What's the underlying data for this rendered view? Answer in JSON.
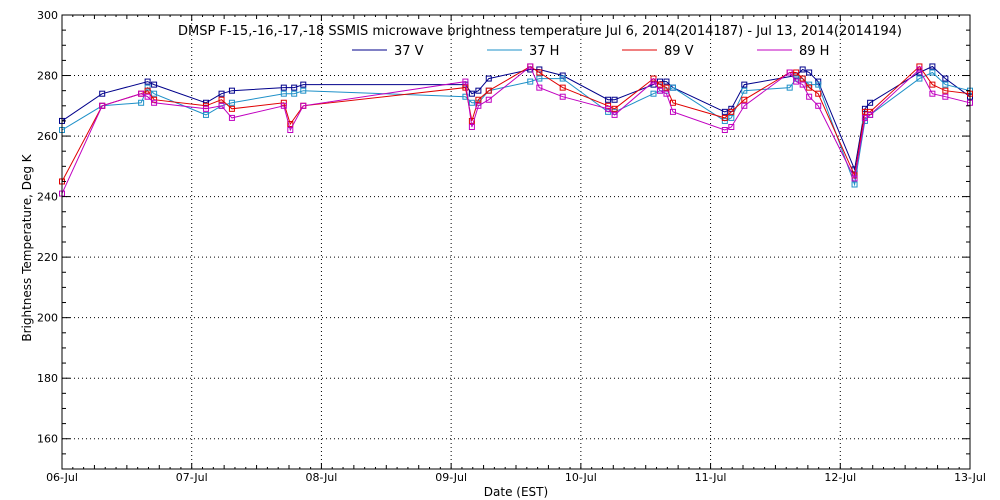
{
  "chart_data": {
    "type": "line",
    "title": "DMSP F-15,-16,-17,-18 SSMIS microwave brightness temperature Jul  6, 2014(2014187) - Jul 13, 2014(2014194)",
    "xlabel": "Date (EST)",
    "ylabel": "Brightness Temperature, Deg K",
    "xlim": [
      0,
      7
    ],
    "ylim": [
      150,
      300
    ],
    "grid": true,
    "legend_position": "top",
    "x_ticks": [
      {
        "value": 0,
        "label": "06-Jul"
      },
      {
        "value": 1,
        "label": "07-Jul"
      },
      {
        "value": 2,
        "label": "08-Jul"
      },
      {
        "value": 3,
        "label": "09-Jul"
      },
      {
        "value": 4,
        "label": "10-Jul"
      },
      {
        "value": 5,
        "label": "11-Jul"
      },
      {
        "value": 6,
        "label": "12-Jul"
      },
      {
        "value": 7,
        "label": "13-Jul"
      }
    ],
    "y_ticks": [
      160,
      180,
      200,
      220,
      240,
      260,
      280,
      300
    ],
    "series": [
      {
        "name": "37 V",
        "color": "#00008b",
        "points": [
          [
            0.0,
            265
          ],
          [
            0.31,
            274
          ],
          [
            0.66,
            278
          ],
          [
            0.71,
            277
          ],
          [
            1.11,
            271
          ],
          [
            1.23,
            274
          ],
          [
            1.31,
            275
          ],
          [
            1.71,
            276
          ],
          [
            1.79,
            276
          ],
          [
            1.86,
            277
          ],
          [
            3.11,
            277
          ],
          [
            3.16,
            274
          ],
          [
            3.21,
            275
          ],
          [
            3.29,
            279
          ],
          [
            3.61,
            282
          ],
          [
            3.68,
            282
          ],
          [
            3.86,
            280
          ],
          [
            4.21,
            272
          ],
          [
            4.26,
            272
          ],
          [
            4.56,
            277
          ],
          [
            4.61,
            278
          ],
          [
            4.66,
            278
          ],
          [
            4.71,
            276
          ],
          [
            5.11,
            268
          ],
          [
            5.16,
            269
          ],
          [
            5.26,
            277
          ],
          [
            5.66,
            280
          ],
          [
            5.71,
            282
          ],
          [
            5.76,
            281
          ],
          [
            5.83,
            278
          ],
          [
            6.11,
            249
          ],
          [
            6.19,
            269
          ],
          [
            6.23,
            271
          ],
          [
            6.61,
            281
          ],
          [
            6.71,
            283
          ],
          [
            6.81,
            279
          ],
          [
            7.0,
            273
          ]
        ]
      },
      {
        "name": "37 H",
        "color": "#1e90c8",
        "points": [
          [
            0.0,
            262
          ],
          [
            0.31,
            270
          ],
          [
            0.61,
            271
          ],
          [
            0.66,
            276
          ],
          [
            0.71,
            274
          ],
          [
            1.11,
            267
          ],
          [
            1.23,
            270
          ],
          [
            1.31,
            271
          ],
          [
            1.71,
            274
          ],
          [
            1.79,
            274
          ],
          [
            1.86,
            275
          ],
          [
            3.11,
            273
          ],
          [
            3.16,
            271
          ],
          [
            3.21,
            271
          ],
          [
            3.29,
            275
          ],
          [
            3.61,
            278
          ],
          [
            3.68,
            279
          ],
          [
            3.86,
            279
          ],
          [
            4.21,
            268
          ],
          [
            4.26,
            268
          ],
          [
            4.56,
            274
          ],
          [
            4.61,
            275
          ],
          [
            4.66,
            275
          ],
          [
            4.71,
            276
          ],
          [
            5.11,
            265
          ],
          [
            5.16,
            266
          ],
          [
            5.26,
            275
          ],
          [
            5.61,
            276
          ],
          [
            5.66,
            279
          ],
          [
            5.71,
            279
          ],
          [
            5.76,
            277
          ],
          [
            5.83,
            277
          ],
          [
            6.11,
            244
          ],
          [
            6.19,
            265
          ],
          [
            6.23,
            267
          ],
          [
            6.61,
            279
          ],
          [
            6.71,
            281
          ],
          [
            6.81,
            277
          ],
          [
            7.0,
            275
          ]
        ]
      },
      {
        "name": "89 V",
        "color": "#e00000",
        "points": [
          [
            0.0,
            245
          ],
          [
            0.31,
            270
          ],
          [
            0.61,
            274
          ],
          [
            0.66,
            275
          ],
          [
            0.71,
            272
          ],
          [
            1.11,
            270
          ],
          [
            1.23,
            272
          ],
          [
            1.31,
            269
          ],
          [
            1.71,
            271
          ],
          [
            1.76,
            264
          ],
          [
            1.86,
            270
          ],
          [
            3.11,
            276
          ],
          [
            3.16,
            265
          ],
          [
            3.21,
            272
          ],
          [
            3.29,
            275
          ],
          [
            3.61,
            283
          ],
          [
            3.68,
            281
          ],
          [
            3.86,
            276
          ],
          [
            4.21,
            270
          ],
          [
            4.26,
            269
          ],
          [
            4.56,
            279
          ],
          [
            4.61,
            277
          ],
          [
            4.66,
            276
          ],
          [
            4.71,
            271
          ],
          [
            5.11,
            266
          ],
          [
            5.16,
            268
          ],
          [
            5.26,
            272
          ],
          [
            5.61,
            281
          ],
          [
            5.66,
            281
          ],
          [
            5.71,
            279
          ],
          [
            5.76,
            276
          ],
          [
            5.83,
            274
          ],
          [
            6.11,
            247
          ],
          [
            6.19,
            268
          ],
          [
            6.23,
            268
          ],
          [
            6.61,
            283
          ],
          [
            6.71,
            277
          ],
          [
            6.81,
            275
          ],
          [
            7.0,
            274
          ]
        ]
      },
      {
        "name": "89 H",
        "color": "#c000c0",
        "points": [
          [
            0.0,
            241
          ],
          [
            0.31,
            270
          ],
          [
            0.61,
            274
          ],
          [
            0.66,
            273
          ],
          [
            0.71,
            271
          ],
          [
            1.11,
            269
          ],
          [
            1.23,
            270
          ],
          [
            1.31,
            266
          ],
          [
            1.71,
            270
          ],
          [
            1.76,
            262
          ],
          [
            1.86,
            270
          ],
          [
            3.11,
            278
          ],
          [
            3.16,
            263
          ],
          [
            3.21,
            270
          ],
          [
            3.29,
            272
          ],
          [
            3.61,
            283
          ],
          [
            3.68,
            276
          ],
          [
            3.86,
            273
          ],
          [
            4.21,
            269
          ],
          [
            4.26,
            267
          ],
          [
            4.56,
            278
          ],
          [
            4.61,
            275
          ],
          [
            4.66,
            274
          ],
          [
            4.71,
            268
          ],
          [
            5.11,
            262
          ],
          [
            5.16,
            263
          ],
          [
            5.26,
            270
          ],
          [
            5.61,
            281
          ],
          [
            5.66,
            278
          ],
          [
            5.71,
            277
          ],
          [
            5.76,
            273
          ],
          [
            5.83,
            270
          ],
          [
            6.11,
            246
          ],
          [
            6.19,
            266
          ],
          [
            6.23,
            267
          ],
          [
            6.61,
            282
          ],
          [
            6.71,
            274
          ],
          [
            6.81,
            273
          ],
          [
            7.0,
            271
          ]
        ]
      }
    ]
  }
}
